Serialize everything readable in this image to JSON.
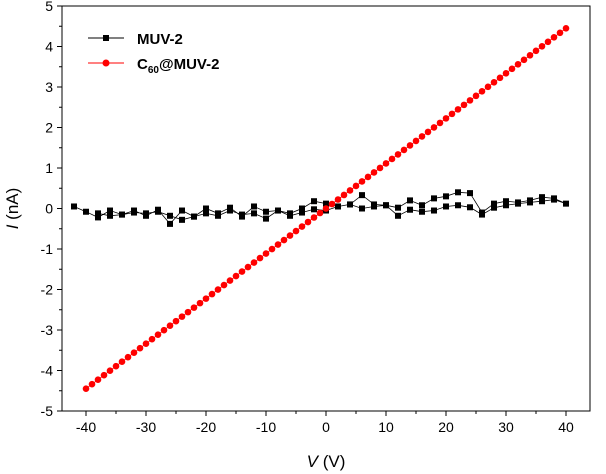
{
  "chart_data": {
    "type": "scatter",
    "title": "",
    "xlabel": {
      "symbol": "V",
      "unit": "(V)"
    },
    "ylabel": {
      "symbol": "I",
      "unit": "(nA)"
    },
    "xlim": [
      -44,
      44
    ],
    "ylim": [
      -5,
      5
    ],
    "xticks": [
      -40,
      -30,
      -20,
      -10,
      0,
      10,
      20,
      30,
      40
    ],
    "xtick_labels": [
      "-40",
      "-30",
      "-20",
      "-10",
      "0",
      "10",
      "20",
      "30",
      "40"
    ],
    "yticks": [
      -5,
      -4,
      -3,
      -2,
      -1,
      0,
      1,
      2,
      3,
      4,
      5
    ],
    "ytick_labels": [
      "-5",
      "-4",
      "-3",
      "-2",
      "-1",
      "0",
      "1",
      "2",
      "3",
      "4",
      "5"
    ],
    "grid": false,
    "legend": {
      "placement": "top-left",
      "entries": [
        {
          "series": 0,
          "label": "MUV-2"
        },
        {
          "series": 1,
          "label_parts": [
            "C",
            "60",
            "@MUV-2"
          ]
        }
      ]
    },
    "series": [
      {
        "name": "MUV-2",
        "color": "#000000",
        "marker": "square",
        "x": [
          -42,
          -40,
          -38,
          -36,
          -34,
          -32,
          -30,
          -28,
          -26,
          -24,
          -22,
          -20,
          -18,
          -16,
          -14,
          -12,
          -10,
          -8,
          -6,
          -4,
          -2,
          0,
          2,
          4,
          6,
          8,
          10,
          12,
          14,
          16,
          18,
          20,
          22,
          24,
          26,
          28,
          30,
          32,
          34,
          36,
          38,
          40,
          38,
          36,
          34,
          32,
          30,
          28,
          26,
          24,
          22,
          20,
          18,
          16,
          14,
          12,
          10,
          8,
          6,
          4,
          2,
          0,
          -2,
          -4,
          -6,
          -8,
          -10,
          -12,
          -14,
          -16,
          -18,
          -20,
          -22,
          -24,
          -26,
          -28,
          -30,
          -32,
          -34,
          -36,
          -38
        ],
        "y": [
          0.05,
          -0.08,
          -0.22,
          -0.05,
          -0.15,
          -0.05,
          -0.18,
          -0.03,
          -0.38,
          -0.05,
          -0.2,
          0.0,
          -0.12,
          0.02,
          -0.2,
          0.05,
          -0.08,
          -0.05,
          -0.12,
          0.0,
          0.18,
          0.12,
          0.05,
          0.1,
          0.33,
          0.1,
          0.08,
          0.02,
          0.2,
          0.08,
          0.25,
          0.3,
          0.4,
          0.38,
          -0.1,
          0.12,
          0.18,
          0.15,
          0.2,
          0.28,
          0.25,
          0.12,
          0.22,
          0.18,
          0.15,
          0.12,
          0.08,
          0.02,
          -0.15,
          0.03,
          0.08,
          0.05,
          -0.05,
          -0.08,
          -0.03,
          -0.18,
          0.08,
          0.05,
          0.0,
          0.1,
          0.05,
          -0.05,
          -0.02,
          -0.1,
          -0.18,
          -0.05,
          -0.25,
          -0.12,
          -0.15,
          -0.05,
          -0.18,
          -0.12,
          -0.2,
          -0.28,
          -0.18,
          -0.08,
          -0.12,
          -0.1,
          -0.15,
          -0.18,
          -0.12
        ]
      },
      {
        "name": "C60@MUV-2",
        "color": "#ff0000",
        "marker": "circle",
        "x_start": -40,
        "x_end": 40,
        "x_step": 1,
        "y_at_x_start": -4.45,
        "y_at_x_end": 4.45,
        "curvature": 0.35
      }
    ]
  }
}
